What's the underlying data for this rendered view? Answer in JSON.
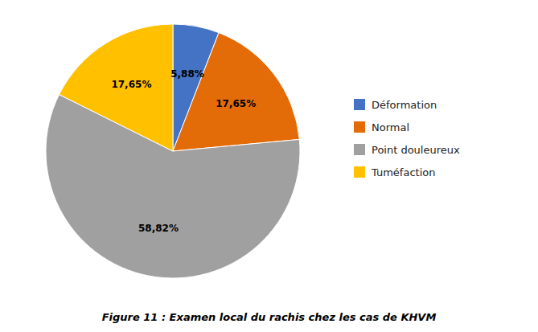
{
  "chart_data": {
    "type": "pie",
    "title": "Figure 11 : Examen local du rachis chez les cas de KHVM",
    "categories": [
      "Déformation",
      "Normal",
      "Point douleureux",
      "Tuméfaction"
    ],
    "values": [
      5.88,
      17.65,
      58.82,
      17.65
    ],
    "value_labels": [
      "5,88%",
      "17,65%",
      "58,82%",
      "17,65%"
    ],
    "colors": [
      "#4472C4",
      "#E36C09",
      "#A0A0A0",
      "#FFC000"
    ],
    "data_labels": true,
    "legend": "right"
  }
}
